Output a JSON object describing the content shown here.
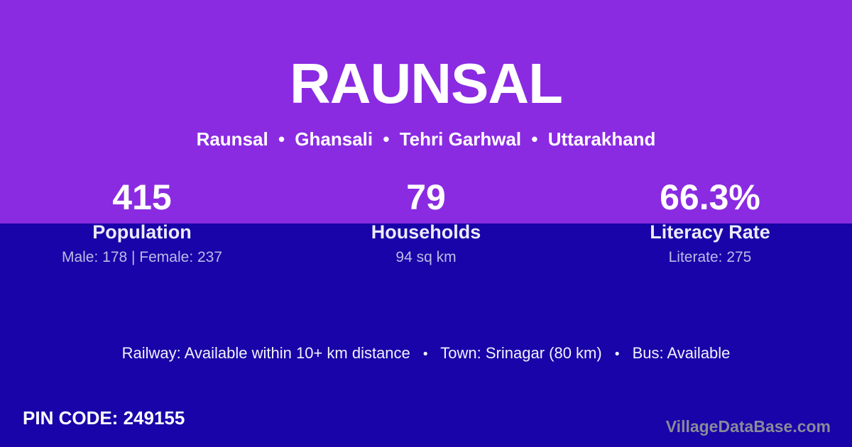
{
  "theme": {
    "purple": "#8A2BE2",
    "dark_blue": "#1804A8",
    "text_primary": "#FFFFFF",
    "text_muted": "rgba(255,255,255,0.72)",
    "brand_gray": "#8A8A99"
  },
  "header": {
    "title": "RAUNSAL",
    "breadcrumb": {
      "village": "Raunsal",
      "block": "Ghansali",
      "district": "Tehri Garhwal",
      "state": "Uttarakhand",
      "separator": "•"
    }
  },
  "stats": [
    {
      "value": "415",
      "label": "Population",
      "detail": "Male: 178 | Female: 237"
    },
    {
      "value": "79",
      "label": "Households",
      "detail": "94 sq km"
    },
    {
      "value": "66.3%",
      "label": "Literacy Rate",
      "detail": "Literate: 275"
    }
  ],
  "transport": {
    "railway": "Railway: Available within 10+ km distance",
    "town": "Town: Srinagar (80 km)",
    "bus": "Bus: Available",
    "separator": "•"
  },
  "footer": {
    "pin_code": "PIN CODE: 249155",
    "brand": "VillageDataBase.com"
  }
}
